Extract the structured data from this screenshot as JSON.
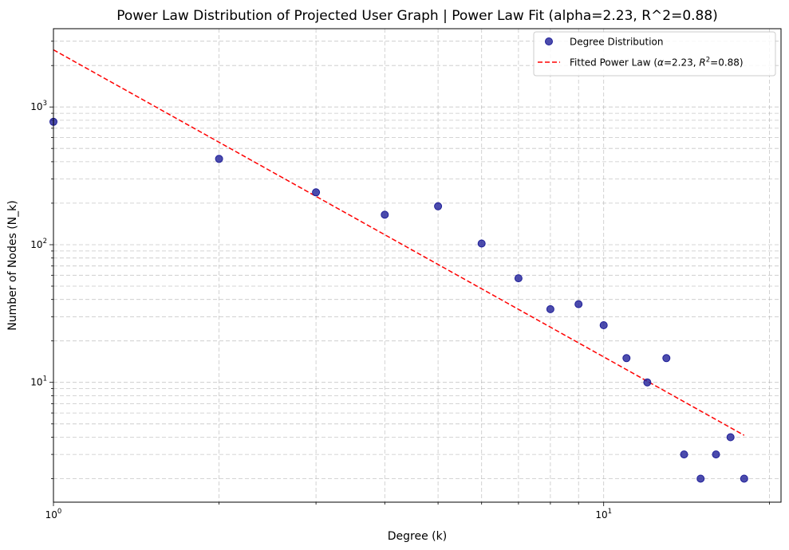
{
  "chart_data": {
    "type": "scatter",
    "title": "Power Law Distribution of Projected User Graph | Power Law Fit (alpha=2.23, R^2=0.88)",
    "xlabel": "Degree (k)",
    "ylabel": "Number of Nodes (N_k)",
    "xscale": "log",
    "yscale": "log",
    "xlim": [
      1,
      21
    ],
    "ylim": [
      1.35,
      3700
    ],
    "x_ticks": [
      {
        "base": "10",
        "exp": "0",
        "value": 1
      },
      {
        "base": "10",
        "exp": "1",
        "value": 10
      }
    ],
    "y_ticks": [
      {
        "base": "10",
        "exp": "1",
        "value": 10
      },
      {
        "base": "10",
        "exp": "2",
        "value": 100
      },
      {
        "base": "10",
        "exp": "3",
        "value": 1000
      }
    ],
    "grid": true,
    "legend_position": "top-right",
    "series": [
      {
        "name": "Degree Distribution",
        "kind": "scatter",
        "color": "#1f1f99",
        "x": [
          1,
          2,
          3,
          4,
          5,
          6,
          7,
          8,
          9,
          10,
          11,
          12,
          13,
          14,
          15,
          16,
          17,
          18
        ],
        "y": [
          780,
          420,
          240,
          165,
          190,
          102,
          57,
          34,
          37,
          26,
          15,
          10,
          15,
          3,
          2,
          3,
          4,
          2
        ]
      },
      {
        "name": "Fitted Power Law (α=2.23, R²=0.88)",
        "kind": "line",
        "color": "#ff0000",
        "alpha": 2.23,
        "r2": 0.88,
        "coefficient": 2600,
        "x_range": [
          1,
          18
        ]
      }
    ],
    "legend": {
      "scatter_label": "Degree Distribution",
      "line_prefix": "Fitted Power Law (",
      "line_alpha": "α",
      "line_alpha_value": "=2.23, ",
      "line_r": "R",
      "line_r_sup": "2",
      "line_suffix": "=0.88)"
    }
  }
}
